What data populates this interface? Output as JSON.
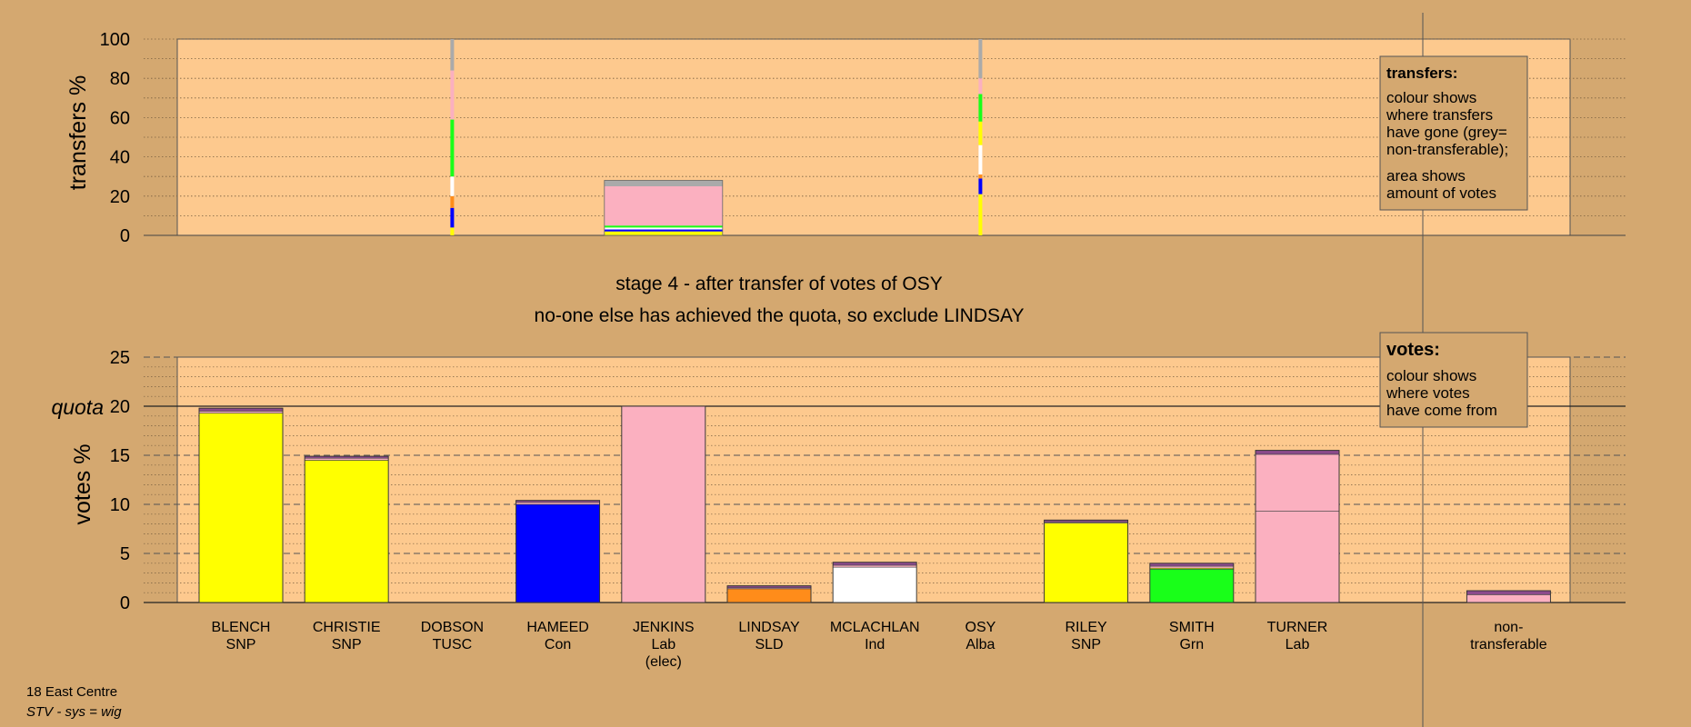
{
  "colors": {
    "background": "#d4a870",
    "plot_area": "#fdc98e",
    "SNP": "#ffff00",
    "TUSC": "#ff8c1a",
    "Con": "#0000ff",
    "Lab": "#fbb0c0",
    "SLD": "#ff8c1a",
    "Ind": "#ffffff",
    "Alba": "#4a8cff",
    "Grn": "#19ff19",
    "nontransferable": "#aaaaaa",
    "other_stripe": "#8b4a8b"
  },
  "chart_data": [
    {
      "type": "bar",
      "name": "transfers",
      "ylabel": "transfers %",
      "ylim": [
        0,
        100
      ],
      "yticks": [
        "0",
        "20",
        "40",
        "60",
        "80",
        "100"
      ],
      "grid": true,
      "columns": [
        {
          "category": "DOBSON",
          "width": "thin",
          "segments": [
            {
              "party": "SNP",
              "value": 4
            },
            {
              "party": "Con",
              "value": 10
            },
            {
              "party": "TUSC",
              "value": 6
            },
            {
              "party": "Ind",
              "value": 10
            },
            {
              "party": "Grn",
              "value": 29
            },
            {
              "party": "Lab",
              "value": 25
            },
            {
              "party": "nontransferable",
              "value": 16
            }
          ]
        },
        {
          "category": "JENKINS",
          "width": "full",
          "segments": [
            {
              "party": "SNP",
              "value": 2
            },
            {
              "party": "Con",
              "value": 1
            },
            {
              "party": "Ind",
              "value": 1
            },
            {
              "party": "Grn",
              "value": 1
            },
            {
              "party": "Lab",
              "value": 20
            },
            {
              "party": "nontransferable",
              "value": 3
            }
          ]
        },
        {
          "category": "OSY",
          "width": "thin",
          "segments": [
            {
              "party": "SNP",
              "value": 21
            },
            {
              "party": "Con",
              "value": 8
            },
            {
              "party": "TUSC",
              "value": 2
            },
            {
              "party": "Ind",
              "value": 15
            },
            {
              "party": "SNP",
              "value": 12
            },
            {
              "party": "Grn",
              "value": 14
            },
            {
              "party": "Lab",
              "value": 8
            },
            {
              "party": "nontransferable",
              "value": 20
            }
          ]
        }
      ],
      "legend": {
        "position": "top-right",
        "title": "transfers:",
        "lines_a": [
          "colour shows",
          "where transfers",
          "have gone (grey=",
          "non-transferable);"
        ],
        "lines_b": [
          "area shows",
          "amount of votes"
        ]
      }
    },
    {
      "type": "bar",
      "name": "votes",
      "ylabel": "votes %",
      "ylim": [
        0,
        25
      ],
      "yticks": [
        "0",
        "5",
        "10",
        "15",
        "20",
        "25"
      ],
      "quota": 20,
      "quota_label": "quota",
      "grid": true,
      "categories": [
        {
          "name": "BLENCH",
          "party": "SNP",
          "note": ""
        },
        {
          "name": "CHRISTIE",
          "party": "SNP",
          "note": ""
        },
        {
          "name": "DOBSON",
          "party": "TUSC",
          "note": ""
        },
        {
          "name": "HAMEED",
          "party": "Con",
          "note": ""
        },
        {
          "name": "JENKINS",
          "party": "Lab",
          "note": "(elec)"
        },
        {
          "name": "LINDSAY",
          "party": "SLD",
          "note": ""
        },
        {
          "name": "MCLACHLAN",
          "party": "Ind",
          "note": ""
        },
        {
          "name": "OSY",
          "party": "Alba",
          "note": ""
        },
        {
          "name": "RILEY",
          "party": "SNP",
          "note": ""
        },
        {
          "name": "SMITH",
          "party": "Grn",
          "note": ""
        },
        {
          "name": "TURNER",
          "party": "Lab",
          "note": ""
        },
        {
          "name": "",
          "party": "",
          "note": ""
        },
        {
          "name": "non-",
          "party": "transferable",
          "note": ""
        }
      ],
      "values": [
        19.8,
        14.9,
        0,
        10.4,
        20.0,
        1.7,
        4.1,
        0,
        8.4,
        4.0,
        15.5,
        0,
        1.2
      ],
      "segments": [
        [
          {
            "party": "SNP",
            "value": 19.3
          },
          {
            "party": "Lab",
            "value": 0.2
          },
          {
            "party": "other",
            "value": 0.3
          }
        ],
        [
          {
            "party": "SNP",
            "value": 14.5
          },
          {
            "party": "Lab",
            "value": 0.2
          },
          {
            "party": "other",
            "value": 0.2
          }
        ],
        [],
        [
          {
            "party": "Con",
            "value": 10.0
          },
          {
            "party": "Lab",
            "value": 0.2
          },
          {
            "party": "other",
            "value": 0.2
          }
        ],
        [
          {
            "party": "Lab",
            "value": 20.0
          }
        ],
        [
          {
            "party": "SLD",
            "value": 1.4
          },
          {
            "party": "Lab",
            "value": 0.1
          },
          {
            "party": "other",
            "value": 0.2
          }
        ],
        [
          {
            "party": "Ind",
            "value": 3.6
          },
          {
            "party": "Lab",
            "value": 0.2
          },
          {
            "party": "other",
            "value": 0.3
          }
        ],
        [],
        [
          {
            "party": "SNP",
            "value": 8.1
          },
          {
            "party": "Lab",
            "value": 0.1
          },
          {
            "party": "other",
            "value": 0.2
          }
        ],
        [
          {
            "party": "Grn",
            "value": 3.4
          },
          {
            "party": "SNP",
            "value": 0.1
          },
          {
            "party": "Lab",
            "value": 0.2
          },
          {
            "party": "other",
            "value": 0.3
          }
        ],
        [
          {
            "party": "Lab",
            "value": 9.3
          },
          {
            "party": "Lab",
            "value": 5.8
          },
          {
            "party": "other",
            "value": 0.4
          }
        ],
        [],
        [
          {
            "party": "Lab",
            "value": 0.8
          },
          {
            "party": "other",
            "value": 0.4
          }
        ]
      ],
      "legend": {
        "position": "top-right",
        "title": "votes:",
        "lines": [
          "colour shows",
          "where votes",
          "have come from"
        ]
      }
    }
  ],
  "stage_title": "stage 4 - after transfer of votes of OSY",
  "stage_subtitle": "no-one else has achieved the quota, so exclude LINDSAY",
  "footer": {
    "line1": "18 East Centre",
    "line2": "STV - sys = wig"
  }
}
